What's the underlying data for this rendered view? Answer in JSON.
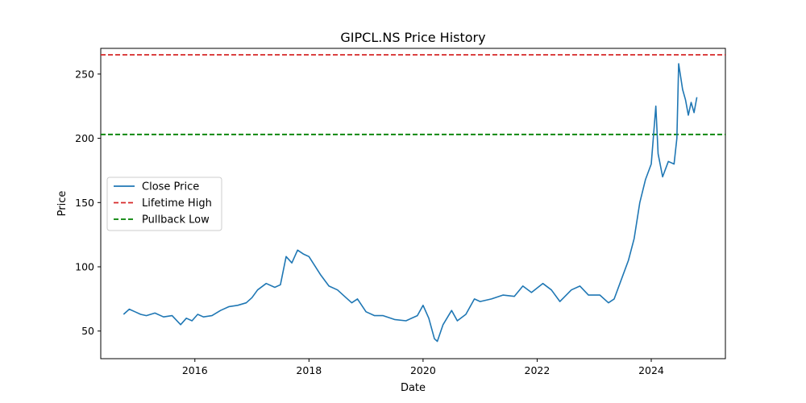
{
  "chart_data": {
    "type": "line",
    "title": "GIPCL.NS Price History",
    "xlabel": "Date",
    "ylabel": "Price",
    "xlim": [
      2014.35,
      2025.3
    ],
    "ylim": [
      28.5,
      270
    ],
    "x_ticks": [
      2016,
      2018,
      2020,
      2022,
      2024
    ],
    "x_tick_labels": [
      "2016",
      "2018",
      "2020",
      "2022",
      "2024"
    ],
    "y_ticks": [
      50,
      100,
      150,
      200,
      250
    ],
    "y_tick_labels": [
      "50",
      "100",
      "150",
      "200",
      "250"
    ],
    "grid": false,
    "legend": {
      "position": "center-left",
      "entries": [
        {
          "label": "Close Price",
          "color": "#1f77b4",
          "style": "solid"
        },
        {
          "label": "Lifetime High",
          "color": "#d62728",
          "style": "dashed"
        },
        {
          "label": "Pullback Low",
          "color": "#008000",
          "style": "dashed"
        }
      ]
    },
    "series": [
      {
        "name": "Close Price",
        "color": "#1f77b4",
        "x": [
          2014.75,
          2014.85,
          2014.95,
          2015.05,
          2015.15,
          2015.3,
          2015.45,
          2015.6,
          2015.75,
          2015.85,
          2015.95,
          2016.05,
          2016.15,
          2016.3,
          2016.45,
          2016.6,
          2016.75,
          2016.9,
          2017.0,
          2017.1,
          2017.25,
          2017.4,
          2017.5,
          2017.6,
          2017.7,
          2017.8,
          2017.9,
          2018.0,
          2018.1,
          2018.2,
          2018.35,
          2018.5,
          2018.65,
          2018.75,
          2018.85,
          2019.0,
          2019.15,
          2019.3,
          2019.5,
          2019.7,
          2019.9,
          2020.0,
          2020.1,
          2020.2,
          2020.25,
          2020.35,
          2020.5,
          2020.6,
          2020.75,
          2020.9,
          2021.0,
          2021.2,
          2021.4,
          2021.6,
          2021.75,
          2021.9,
          2022.1,
          2022.25,
          2022.4,
          2022.6,
          2022.75,
          2022.9,
          2023.1,
          2023.25,
          2023.35,
          2023.5,
          2023.6,
          2023.7,
          2023.8,
          2023.9,
          2024.0,
          2024.08,
          2024.12,
          2024.2,
          2024.3,
          2024.4,
          2024.45,
          2024.48,
          2024.55,
          2024.6,
          2024.65,
          2024.7,
          2024.75,
          2024.8
        ],
        "y": [
          63,
          67,
          65,
          63,
          62,
          64,
          61,
          62,
          55,
          60,
          58,
          63,
          61,
          62,
          66,
          69,
          70,
          72,
          76,
          82,
          87,
          84,
          86,
          108,
          103,
          113,
          110,
          108,
          101,
          94,
          85,
          82,
          76,
          72,
          75,
          65,
          62,
          62,
          59,
          58,
          62,
          70,
          60,
          44,
          42,
          55,
          66,
          58,
          63,
          75,
          73,
          75,
          78,
          77,
          85,
          80,
          87,
          82,
          73,
          82,
          85,
          78,
          78,
          72,
          75,
          93,
          105,
          122,
          150,
          168,
          180,
          225,
          188,
          170,
          182,
          180,
          200,
          258,
          238,
          230,
          218,
          228,
          220,
          232
        ]
      }
    ],
    "reference_lines": [
      {
        "name": "Lifetime High",
        "y": 265,
        "color": "#d62728",
        "style": "dashed"
      },
      {
        "name": "Pullback Low",
        "y": 203,
        "color": "#008000",
        "style": "dashed"
      }
    ]
  }
}
